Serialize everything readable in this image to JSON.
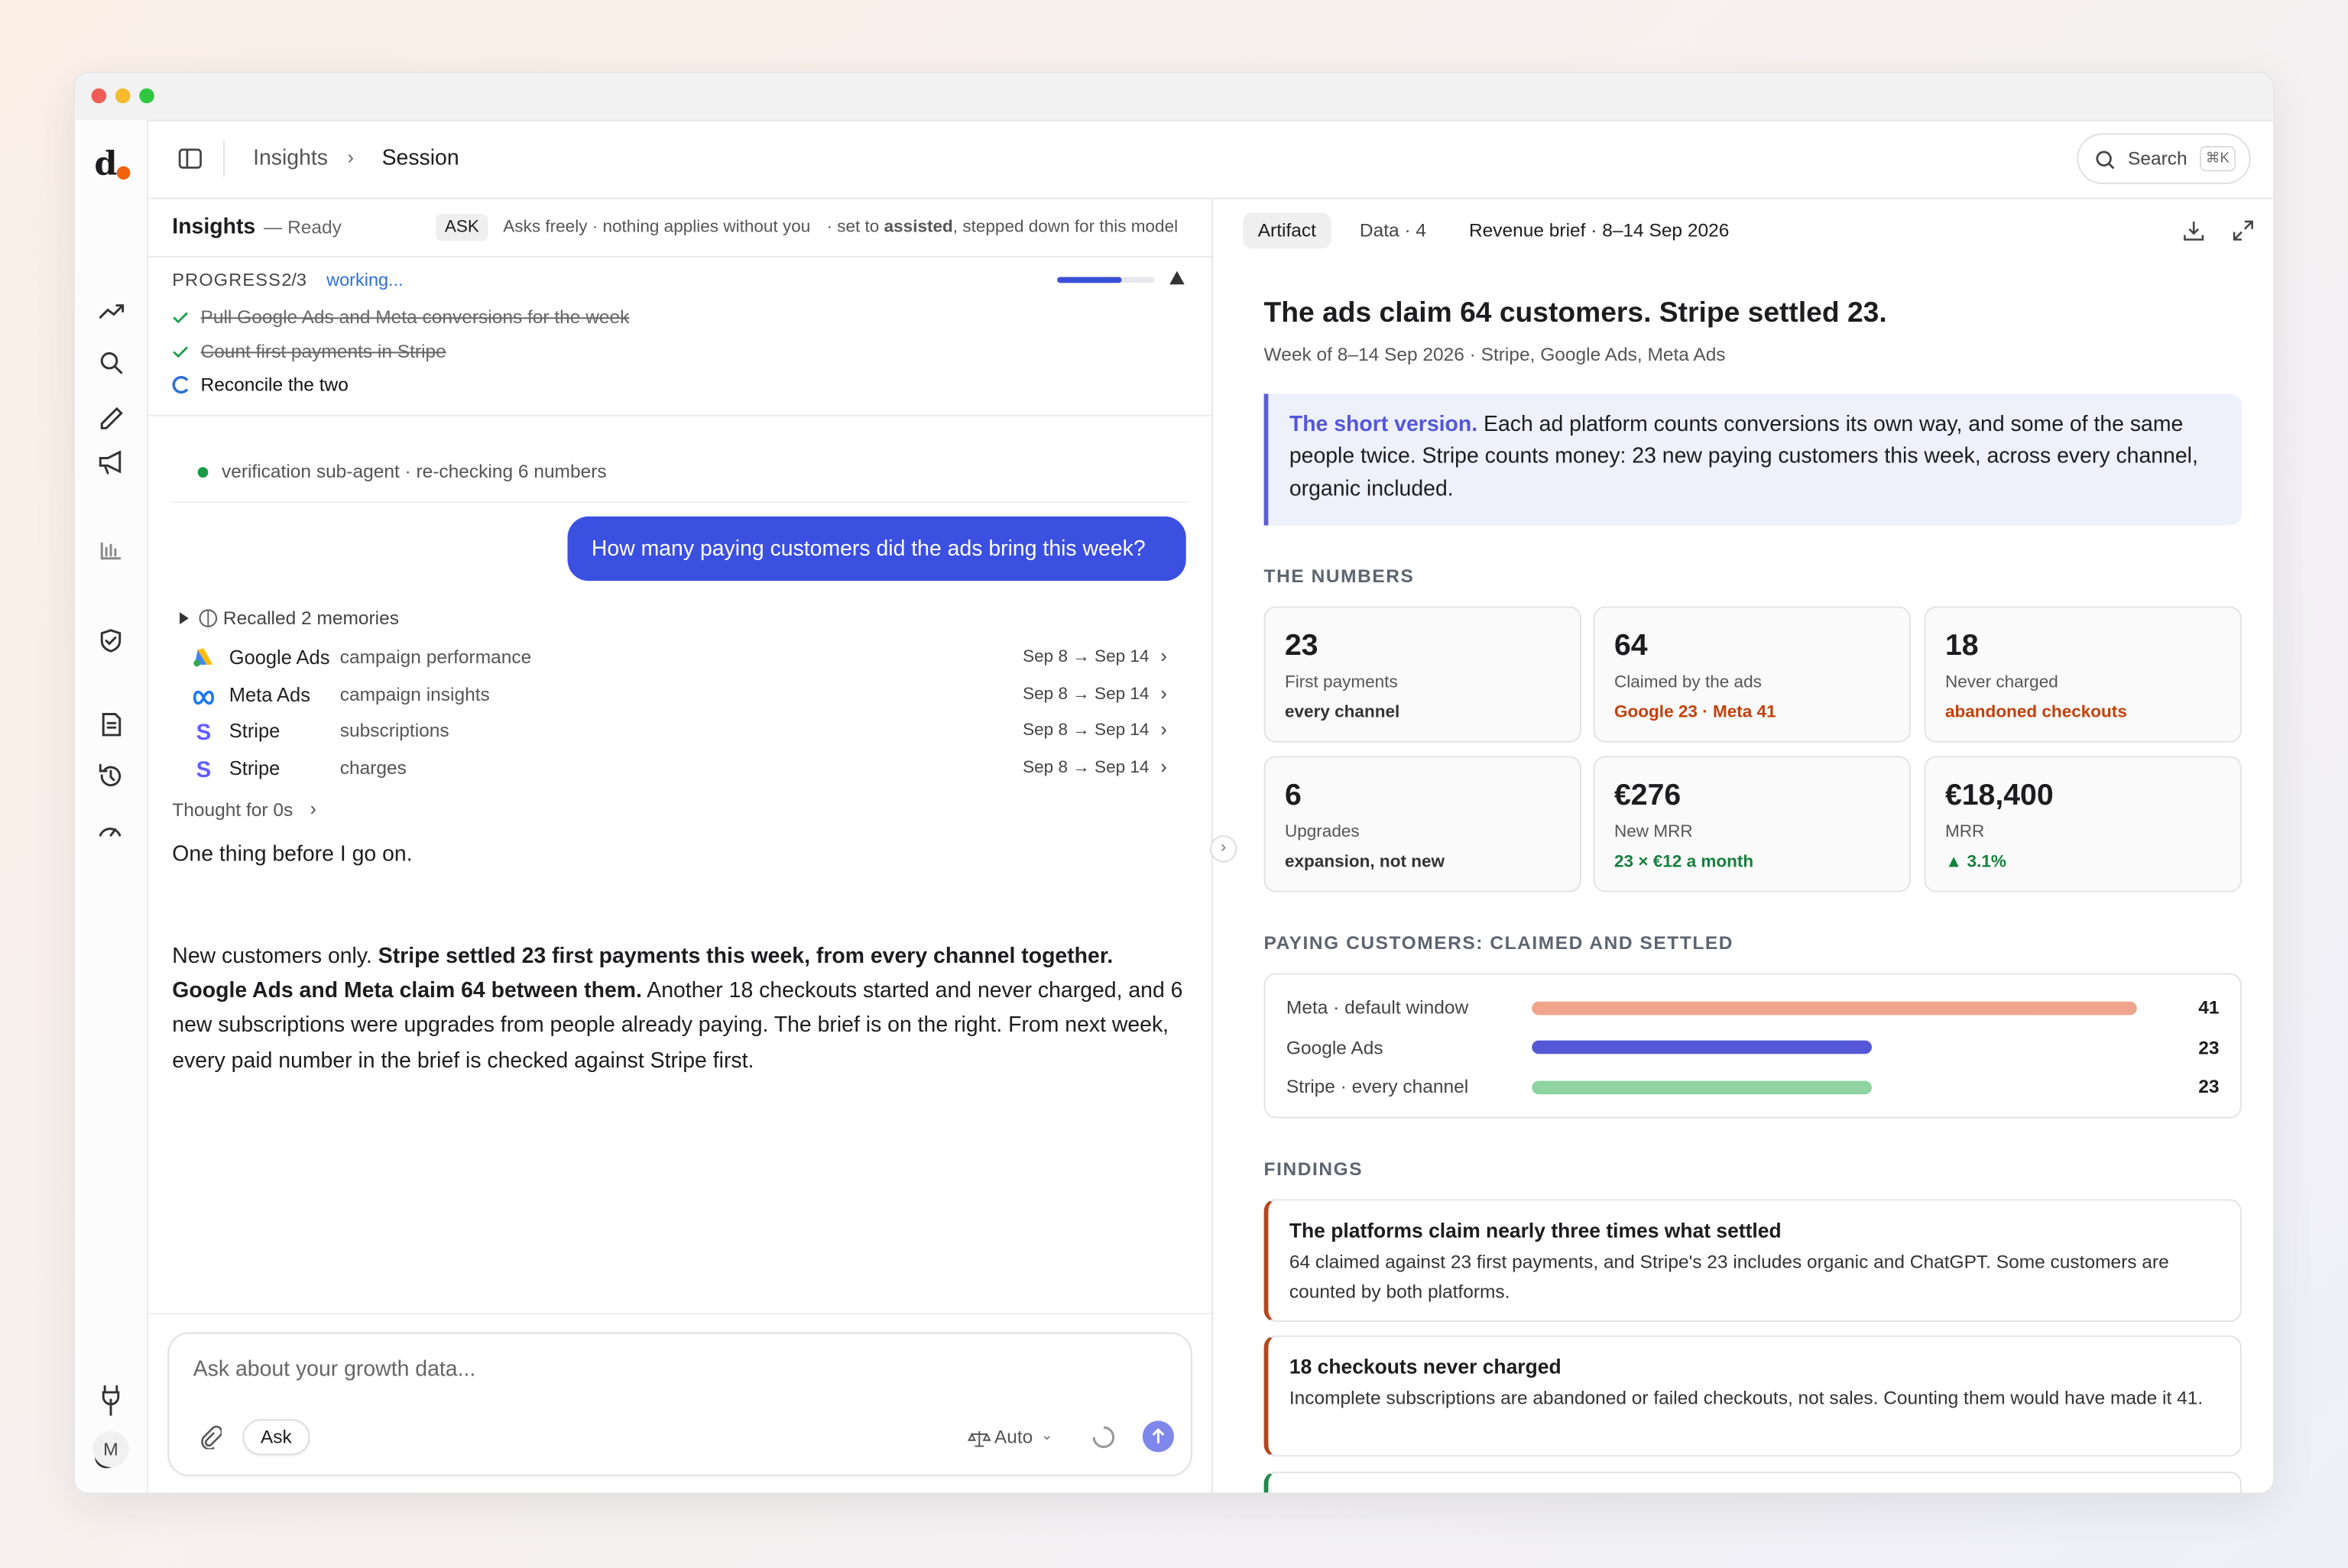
{
  "sidebar": {
    "logo": "d",
    "avatar": "M"
  },
  "header": {
    "crumbs": [
      "Insights",
      "Session"
    ],
    "search": "Search",
    "shortcut": "⌘K"
  },
  "left": {
    "title": "Insights",
    "status": "— Ready",
    "mode": "ASK",
    "mode_note": "Asks freely · nothing applies without you",
    "set_note": [
      {
        "text": "· set to "
      },
      {
        "text": "assisted",
        "bold": true
      },
      {
        "text": ", stepped down for this model"
      }
    ],
    "progress": {
      "label": "PROGRESS",
      "count": "2/3",
      "state": "working...",
      "steps": [
        {
          "text": "Pull Google Ads and Meta conversions for the week",
          "done": true
        },
        {
          "text": "Count first payments in Stripe",
          "done": true
        },
        {
          "text": "Reconcile the two",
          "done": false
        }
      ]
    },
    "agent": "verification sub-agent · re-checking 6 numbers",
    "user_message": "How many paying customers did the ads bring this week?",
    "memories": "Recalled 2 memories",
    "sources": [
      {
        "name": "Google Ads",
        "detail": "campaign performance",
        "range": "Sep 8 → Sep 14",
        "icon": "google"
      },
      {
        "name": "Meta Ads",
        "detail": "campaign insights",
        "range": "Sep 8 → Sep 14",
        "icon": "meta"
      },
      {
        "name": "Stripe",
        "detail": "subscriptions",
        "range": "Sep 8 → Sep 14",
        "icon": "stripe"
      },
      {
        "name": "Stripe",
        "detail": "charges",
        "range": "Sep 8 → Sep 14",
        "icon": "stripe"
      }
    ],
    "thought": "Thought for 0s",
    "reply_intro": "One thing before I go on.",
    "reply": [
      {
        "text": "New customers only. "
      },
      {
        "text": "Stripe settled 23 first payments this week, from every channel together. Google Ads and Meta claim 64 between them.",
        "bold": true
      },
      {
        "text": " Another 18 checkouts started and never charged, and 6 new subscriptions were upgrades from people already paying. The brief is on the right. From next week, every paid number in the brief is checked against Stripe first."
      }
    ],
    "composer": {
      "placeholder": "Ask about your growth data...",
      "mode": "Ask",
      "model": "Auto"
    }
  },
  "right": {
    "tabs": [
      "Artifact",
      "Data · 4"
    ],
    "brief": "Revenue brief · 8–14 Sep 2026",
    "title": "The ads claim 64 customers. Stripe settled 23.",
    "subtitle": "Week of 8–14 Sep 2026 · Stripe, Google Ads, Meta Ads",
    "callout_lead": "The short version.",
    "callout": " Each ad platform counts conversions its own way, and some of the same people twice. Stripe counts money: 23 new paying customers this week, across every channel, organic included.",
    "numbers_heading": "THE NUMBERS",
    "cards": [
      {
        "value": "23",
        "label": "First payments",
        "note": "every channel",
        "tone": "neutral"
      },
      {
        "value": "64",
        "label": "Claimed by the ads",
        "note": "Google 23 · Meta 41",
        "tone": "warn"
      },
      {
        "value": "18",
        "label": "Never charged",
        "note": "abandoned checkouts",
        "tone": "warn"
      },
      {
        "value": "6",
        "label": "Upgrades",
        "note": "expansion, not new",
        "tone": "neutral"
      },
      {
        "value": "€276",
        "label": "New MRR",
        "note": "23 × €12 a month",
        "tone": "good"
      },
      {
        "value": "€18,400",
        "label": "MRR",
        "note": "▲ 3.1%",
        "tone": "good"
      }
    ],
    "chart": {
      "type": "bar",
      "title": "PAYING CUSTOMERS: CLAIMED AND SETTLED",
      "categories": [
        "Meta · default window",
        "Google Ads",
        "Stripe · every channel"
      ],
      "values": [
        41,
        23,
        23
      ],
      "colors": [
        "#f0a48c",
        "#5457d6",
        "#8fd3a0"
      ],
      "xlim": [
        0,
        41
      ]
    },
    "findings_heading": "FINDINGS",
    "findings": [
      {
        "title": "The platforms claim nearly three times what settled",
        "text": "64 claimed against 23 first payments, and Stripe's 23 includes organic and ChatGPT. Some customers are counted by both platforms.",
        "color": "#b4471c"
      },
      {
        "title": "18 checkouts never charged",
        "text": "Incomplete subscriptions are abandoned or failed checkouts, not sales. Counting them would have made it 41.",
        "color": "#b4471c"
      }
    ]
  }
}
